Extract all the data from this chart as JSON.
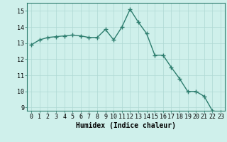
{
  "x": [
    0,
    1,
    2,
    3,
    4,
    5,
    6,
    7,
    8,
    9,
    10,
    11,
    12,
    13,
    14,
    15,
    16,
    17,
    18,
    19,
    20,
    21,
    22,
    23
  ],
  "y": [
    12.9,
    13.2,
    13.35,
    13.4,
    13.45,
    13.5,
    13.45,
    13.35,
    13.35,
    13.85,
    13.2,
    14.0,
    15.1,
    14.3,
    13.6,
    12.25,
    12.25,
    11.5,
    10.8,
    10.0,
    10.0,
    9.7,
    8.8,
    8.7
  ],
  "line_color": "#2d7d6e",
  "marker": "+",
  "marker_size": 4,
  "marker_linewidth": 1.0,
  "bg_color": "#cff0eb",
  "grid_color": "#aed8d3",
  "xlabel": "Humidex (Indice chaleur)",
  "xlim": [
    -0.5,
    23.5
  ],
  "ylim": [
    8.8,
    15.5
  ],
  "yticks": [
    9,
    10,
    11,
    12,
    13,
    14,
    15
  ],
  "xticks": [
    0,
    1,
    2,
    3,
    4,
    5,
    6,
    7,
    8,
    9,
    10,
    11,
    12,
    13,
    14,
    15,
    16,
    17,
    18,
    19,
    20,
    21,
    22,
    23
  ],
  "xlabel_fontsize": 7,
  "tick_fontsize": 6,
  "line_width": 1.0
}
